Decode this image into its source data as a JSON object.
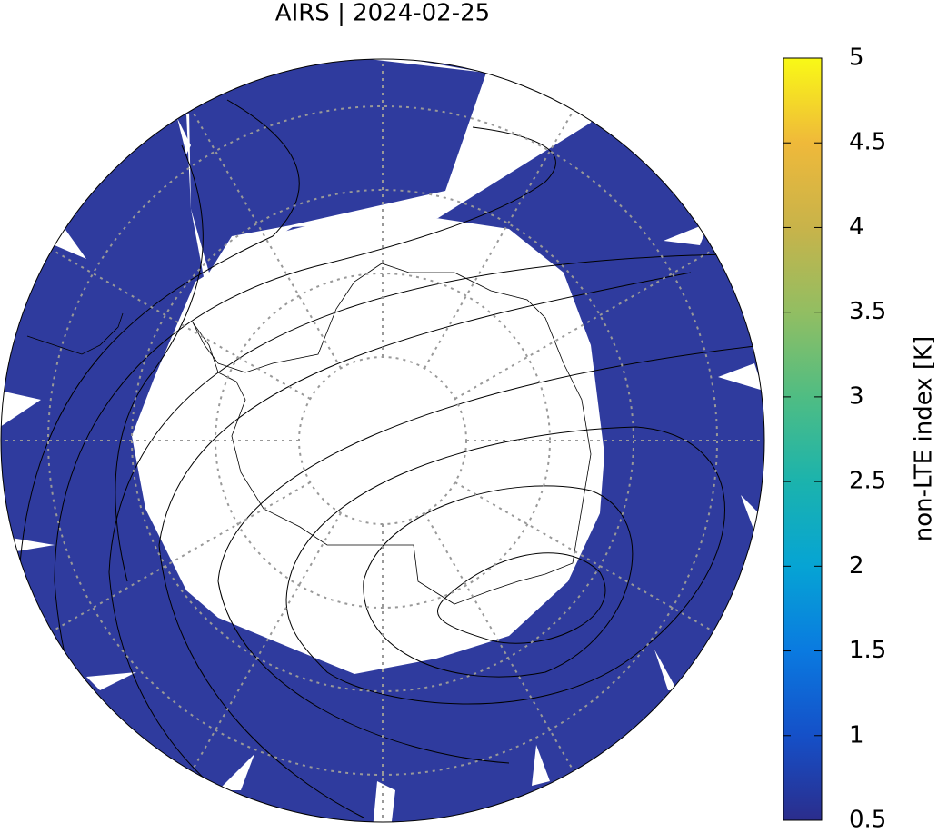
{
  "chart_data": {
    "type": "map",
    "title": "AIRS | 2024-02-25",
    "colorbar": {
      "label": "non-LTE index [K]",
      "lim": [
        0.5,
        5
      ],
      "ticks": [
        0.5,
        1,
        1.5,
        2,
        2.5,
        3,
        3.5,
        4,
        4.5,
        5
      ],
      "colors": [
        "#2b2d8c",
        "#1550c8",
        "#0a7ae0",
        "#06a4d4",
        "#1bb3ad",
        "#4fbd83",
        "#92be62",
        "#c8b34a",
        "#efb93a",
        "#f9f916"
      ]
    }
  }
}
